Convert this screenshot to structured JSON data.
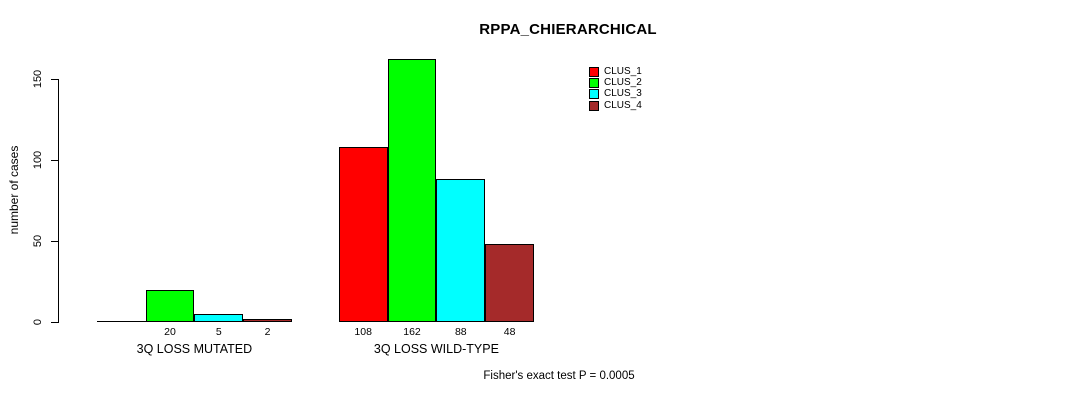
{
  "title": "RPPA_CHIERARCHICAL",
  "chart_data": {
    "type": "bar",
    "title": "RPPA_CHIERARCHICAL",
    "ylabel": "number of cases",
    "xlabel": "",
    "ylim": [
      0,
      150
    ],
    "yticks": [
      0,
      50,
      100,
      150
    ],
    "grid": false,
    "legend_position": "top-right",
    "categories": [
      "3Q LOSS MUTATED",
      "3Q LOSS WILD-TYPE"
    ],
    "series": [
      {
        "name": "CLUS_1",
        "color": "#FF0000",
        "values": [
          0,
          108
        ]
      },
      {
        "name": "CLUS_2",
        "color": "#00FF00",
        "values": [
          20,
          162
        ]
      },
      {
        "name": "CLUS_3",
        "color": "#00FFFF",
        "values": [
          5,
          88
        ]
      },
      {
        "name": "CLUS_4",
        "color": "#A52A2A",
        "values": [
          2,
          48
        ]
      }
    ],
    "bar_value_labels": [
      [
        "",
        "20",
        "5",
        "2"
      ],
      [
        "108",
        "162",
        "88",
        "48"
      ]
    ],
    "annotation": "Fisher's exact test P = 0.0005"
  }
}
